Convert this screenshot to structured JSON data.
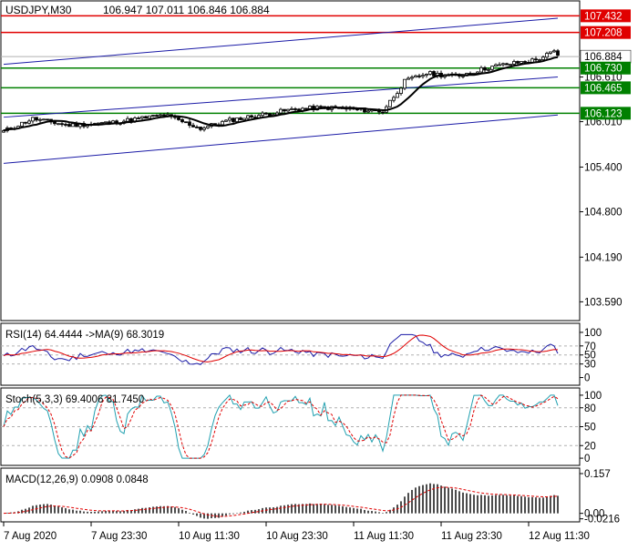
{
  "chart_data": {
    "type": "candlestick",
    "main": {
      "symbol_label": "USDJPY,M30",
      "ohlc_label": "106.947 107.011 106.846 106.884",
      "y_range": [
        103.35,
        107.62
      ],
      "y_ticks": [
        "106.010",
        "105.400",
        "104.800",
        "104.190",
        "103.590"
      ],
      "y_tick_values": [
        106.01,
        105.4,
        104.8,
        104.19,
        103.59
      ],
      "extra_tick": {
        "label": "106.610",
        "value": 106.61
      },
      "price_label": {
        "text": "106.884",
        "value": 106.884
      },
      "levels": [
        {
          "text": "107.432",
          "value": 107.432,
          "color": "#e00000"
        },
        {
          "text": "107.208",
          "value": 107.208,
          "color": "#e00000"
        },
        {
          "text": "106.730",
          "value": 106.73,
          "color": "#008000"
        },
        {
          "text": "106.465",
          "value": 106.465,
          "color": "#008000"
        },
        {
          "text": "106.123",
          "value": 106.123,
          "color": "#008000"
        }
      ],
      "channel_lines": [
        {
          "from": [
            0,
            106.78
          ],
          "to": [
            152,
            107.4
          ],
          "color": "#1a1aa6"
        },
        {
          "from": [
            0,
            106.07
          ],
          "to": [
            152,
            106.61
          ],
          "color": "#1a1aa6"
        },
        {
          "from": [
            0,
            105.45
          ],
          "to": [
            152,
            106.1
          ],
          "color": "#1a1aa6"
        }
      ],
      "candle_color": "#000000",
      "ma_color": "#000000"
    },
    "rsi": {
      "label": "RSI(14) 64.4444  ->MA(9) 68.3019",
      "y_range": [
        -15,
        118
      ],
      "ticks": [
        "100",
        "70",
        "50",
        "30",
        "0"
      ],
      "tick_values": [
        100,
        70,
        50,
        30,
        0
      ],
      "levels": [
        70,
        50,
        30
      ],
      "series_colors": [
        "#1a1aa6",
        "#e00000"
      ]
    },
    "stoch": {
      "label": "Stoch(5,3,3) 69.4006 81.7450",
      "y_range": [
        -10,
        110
      ],
      "ticks": [
        "100",
        "80",
        "50",
        "20",
        "0"
      ],
      "tick_values": [
        100,
        80,
        50,
        20,
        0
      ],
      "levels": [
        80,
        50,
        20
      ],
      "series_colors": [
        "#20a0b0",
        "#e00000"
      ]
    },
    "macd": {
      "label": "MACD(12,26,9) 0.0908 0.0848",
      "y_range": [
        -0.03,
        0.175
      ],
      "ticks": [
        "0.157",
        "0.00",
        "-0.0216"
      ],
      "tick_values": [
        0.157,
        0.0,
        -0.0216
      ],
      "hist_color": "#000000",
      "signal_color": "#e00000"
    },
    "x_labels": [
      "7 Aug 2020",
      "7 Aug 23:30",
      "10 Aug 11:30",
      "10 Aug 23:30",
      "11 Aug 11:30",
      "11 Aug 23:30",
      "12 Aug 11:30"
    ],
    "x_label_index": [
      0,
      24,
      48,
      72,
      96,
      120,
      144
    ]
  }
}
